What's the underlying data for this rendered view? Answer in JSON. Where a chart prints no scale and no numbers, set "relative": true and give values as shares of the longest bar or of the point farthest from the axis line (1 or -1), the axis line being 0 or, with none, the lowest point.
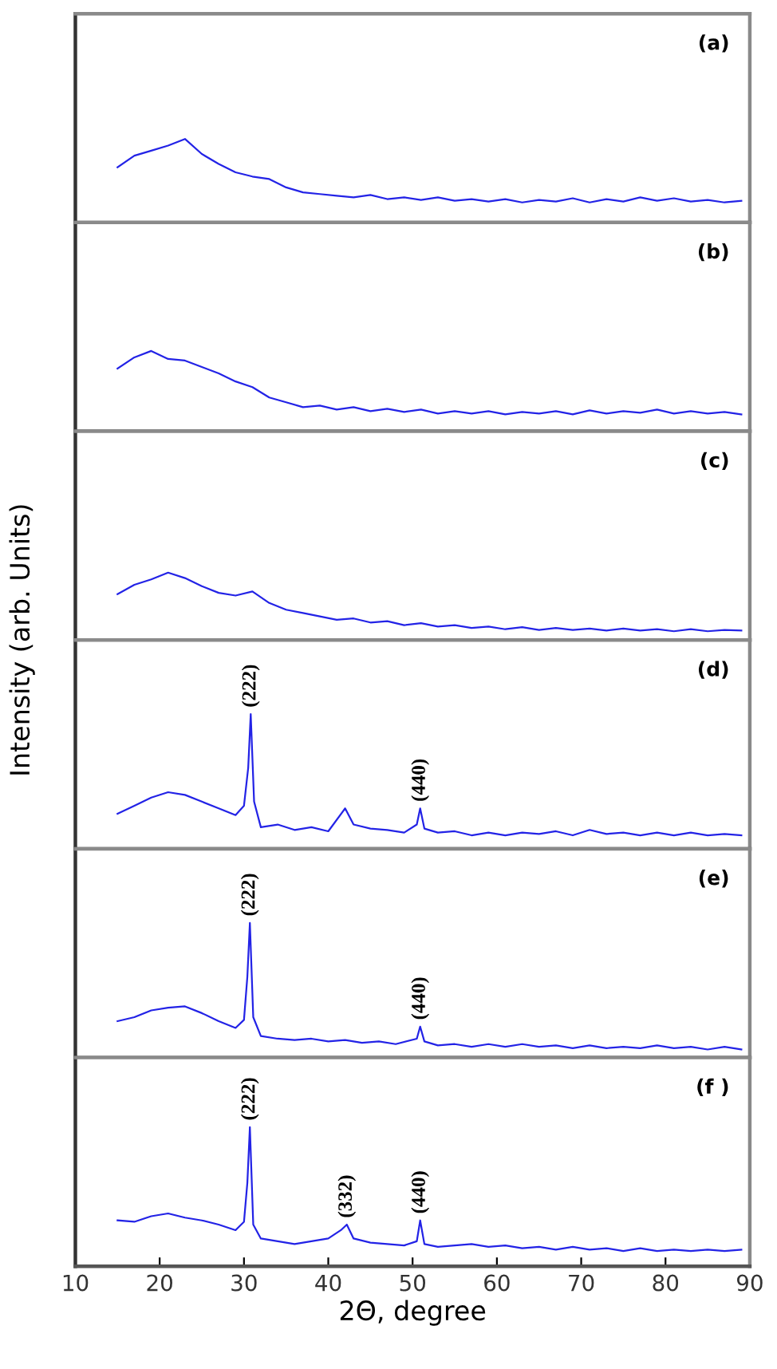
{
  "chart_data": [
    {
      "type": "line",
      "title": "(a)",
      "relative": true,
      "xlim": [
        10,
        90
      ],
      "tick_labels": false,
      "x": [
        15,
        17,
        19,
        21,
        23,
        25,
        27,
        29,
        31,
        33,
        35,
        37,
        39,
        41,
        43,
        45,
        47,
        49,
        51,
        53,
        55,
        57,
        59,
        61,
        63,
        65,
        67,
        69,
        71,
        73,
        75,
        77,
        79,
        81,
        83,
        85,
        87,
        89
      ],
      "series": [
        {
          "color": "#2323e6",
          "values": [
            0.66,
            0.8,
            0.86,
            0.92,
            1.0,
            0.82,
            0.7,
            0.6,
            0.55,
            0.52,
            0.42,
            0.36,
            0.34,
            0.32,
            0.3,
            0.33,
            0.28,
            0.3,
            0.27,
            0.3,
            0.26,
            0.28,
            0.25,
            0.28,
            0.24,
            0.27,
            0.25,
            0.29,
            0.24,
            0.28,
            0.25,
            0.3,
            0.26,
            0.29,
            0.25,
            0.27,
            0.24,
            0.26
          ]
        }
      ]
    },
    {
      "type": "line",
      "title": "(b)",
      "relative": true,
      "xlim": [
        10,
        90
      ],
      "tick_labels": false,
      "x": [
        15,
        17,
        19,
        21,
        23,
        25,
        27,
        29,
        31,
        33,
        35,
        37,
        39,
        41,
        43,
        45,
        47,
        49,
        51,
        53,
        55,
        57,
        59,
        61,
        63,
        65,
        67,
        69,
        71,
        73,
        75,
        77,
        79,
        81,
        83,
        85,
        87,
        89
      ],
      "series": [
        {
          "color": "#2323e6",
          "values": [
            0.78,
            0.92,
            1.0,
            0.9,
            0.88,
            0.8,
            0.72,
            0.62,
            0.55,
            0.42,
            0.36,
            0.3,
            0.32,
            0.27,
            0.3,
            0.25,
            0.28,
            0.24,
            0.27,
            0.22,
            0.25,
            0.22,
            0.25,
            0.21,
            0.24,
            0.22,
            0.25,
            0.21,
            0.26,
            0.22,
            0.25,
            0.23,
            0.27,
            0.22,
            0.25,
            0.22,
            0.24,
            0.21
          ]
        }
      ]
    },
    {
      "type": "line",
      "title": "(c)",
      "relative": true,
      "xlim": [
        10,
        90
      ],
      "tick_labels": false,
      "x": [
        15,
        17,
        19,
        21,
        23,
        25,
        27,
        29,
        31,
        33,
        35,
        37,
        39,
        41,
        43,
        45,
        47,
        49,
        51,
        53,
        55,
        57,
        59,
        61,
        63,
        65,
        67,
        69,
        71,
        73,
        75,
        77,
        79,
        81,
        83,
        85,
        87,
        89
      ],
      "series": [
        {
          "color": "#2323e6",
          "values": [
            0.68,
            0.82,
            0.9,
            1.0,
            0.92,
            0.8,
            0.7,
            0.66,
            0.72,
            0.55,
            0.45,
            0.4,
            0.35,
            0.3,
            0.32,
            0.26,
            0.28,
            0.22,
            0.25,
            0.2,
            0.22,
            0.18,
            0.2,
            0.16,
            0.19,
            0.15,
            0.18,
            0.15,
            0.17,
            0.14,
            0.17,
            0.14,
            0.16,
            0.13,
            0.16,
            0.13,
            0.15,
            0.14
          ]
        }
      ]
    },
    {
      "type": "line",
      "title": "(d)",
      "relative": true,
      "xlim": [
        10,
        90
      ],
      "tick_labels": false,
      "ylabel": "Intensity (arb. Units)",
      "x": [
        15,
        17,
        19,
        21,
        23,
        25,
        27,
        29,
        30,
        30.5,
        30.8,
        31.2,
        32,
        34,
        36,
        38,
        40,
        42,
        43,
        45,
        47,
        49,
        50.5,
        50.9,
        51.4,
        53,
        55,
        57,
        59,
        61,
        63,
        65,
        67,
        69,
        71,
        73,
        75,
        77,
        79,
        81,
        83,
        85,
        87,
        89
      ],
      "series": [
        {
          "color": "#2323e6",
          "values": [
            0.26,
            0.32,
            0.38,
            0.42,
            0.4,
            0.35,
            0.3,
            0.25,
            0.32,
            0.6,
            1.0,
            0.35,
            0.16,
            0.18,
            0.14,
            0.16,
            0.13,
            0.3,
            0.18,
            0.15,
            0.14,
            0.12,
            0.18,
            0.3,
            0.15,
            0.12,
            0.13,
            0.1,
            0.12,
            0.1,
            0.12,
            0.11,
            0.13,
            0.1,
            0.14,
            0.11,
            0.12,
            0.1,
            0.12,
            0.1,
            0.12,
            0.1,
            0.11,
            0.1
          ]
        }
      ],
      "annotations": [
        {
          "text": "(222)",
          "x": 30.8,
          "y": 1.0
        },
        {
          "text": "(440)",
          "x": 50.9,
          "y": 0.3
        }
      ]
    },
    {
      "type": "line",
      "title": "(e)",
      "relative": true,
      "xlim": [
        10,
        90
      ],
      "tick_labels": false,
      "x": [
        15,
        17,
        19,
        21,
        23,
        25,
        27,
        29,
        30,
        30.4,
        30.7,
        31.1,
        32,
        34,
        36,
        38,
        40,
        42,
        44,
        46,
        48,
        50.5,
        50.9,
        51.4,
        53,
        55,
        57,
        59,
        61,
        63,
        65,
        67,
        69,
        71,
        73,
        75,
        77,
        79,
        81,
        83,
        85,
        87,
        89
      ],
      "series": [
        {
          "color": "#2323e6",
          "values": [
            0.27,
            0.3,
            0.35,
            0.37,
            0.38,
            0.33,
            0.27,
            0.22,
            0.28,
            0.6,
            1.0,
            0.3,
            0.16,
            0.14,
            0.13,
            0.14,
            0.12,
            0.13,
            0.11,
            0.12,
            0.1,
            0.14,
            0.23,
            0.12,
            0.09,
            0.1,
            0.08,
            0.1,
            0.08,
            0.1,
            0.08,
            0.09,
            0.07,
            0.09,
            0.07,
            0.08,
            0.07,
            0.09,
            0.07,
            0.08,
            0.06,
            0.08,
            0.06
          ]
        }
      ],
      "annotations": [
        {
          "text": "(222)",
          "x": 30.7,
          "y": 1.0
        },
        {
          "text": "(440)",
          "x": 50.9,
          "y": 0.23
        }
      ]
    },
    {
      "type": "line",
      "title": "(f )",
      "relative": true,
      "xlim": [
        10,
        90
      ],
      "xticks": [
        10,
        20,
        30,
        40,
        50,
        60,
        70,
        80,
        90
      ],
      "tick_labels": "x",
      "xlabel": "2Θ, degree",
      "x": [
        15,
        17,
        19,
        21,
        23,
        25,
        27,
        29,
        30,
        30.4,
        30.7,
        31.1,
        32,
        34,
        36,
        38,
        40,
        41.5,
        42.2,
        43,
        45,
        47,
        49,
        50.5,
        50.9,
        51.4,
        53,
        55,
        57,
        59,
        61,
        63,
        65,
        67,
        69,
        71,
        73,
        75,
        77,
        79,
        81,
        83,
        85,
        87,
        89
      ],
      "series": [
        {
          "color": "#2323e6",
          "values": [
            0.33,
            0.32,
            0.36,
            0.38,
            0.35,
            0.33,
            0.3,
            0.26,
            0.32,
            0.6,
            1.0,
            0.3,
            0.2,
            0.18,
            0.16,
            0.18,
            0.2,
            0.26,
            0.3,
            0.2,
            0.17,
            0.16,
            0.15,
            0.18,
            0.33,
            0.16,
            0.14,
            0.15,
            0.16,
            0.14,
            0.15,
            0.13,
            0.14,
            0.12,
            0.14,
            0.12,
            0.13,
            0.11,
            0.13,
            0.11,
            0.12,
            0.11,
            0.12,
            0.11,
            0.12
          ]
        }
      ],
      "annotations": [
        {
          "text": "(222)",
          "x": 30.7,
          "y": 1.0
        },
        {
          "text": "(332)",
          "x": 42.2,
          "y": 0.3
        },
        {
          "text": "(440)",
          "x": 50.9,
          "y": 0.33
        }
      ]
    }
  ]
}
